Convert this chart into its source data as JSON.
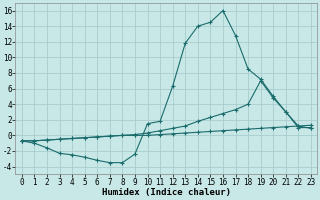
{
  "xlabel": "Humidex (Indice chaleur)",
  "background_color": "#c8e8e8",
  "grid_color": "#a8cccc",
  "line_color": "#1a6b6b",
  "xlim_min": -0.5,
  "xlim_max": 23.5,
  "ylim_min": -5,
  "ylim_max": 17,
  "xticks": [
    0,
    1,
    2,
    3,
    4,
    5,
    6,
    7,
    8,
    9,
    10,
    11,
    12,
    13,
    14,
    15,
    16,
    17,
    18,
    19,
    20,
    21,
    22,
    23
  ],
  "yticks": [
    -4,
    -2,
    0,
    2,
    4,
    6,
    8,
    10,
    12,
    14,
    16
  ],
  "line1_x": [
    0,
    1,
    2,
    3,
    4,
    5,
    6,
    7,
    8,
    9,
    10,
    11,
    12,
    13,
    14,
    15,
    16,
    17,
    18,
    19,
    20,
    21,
    22,
    23
  ],
  "line1_y": [
    -0.7,
    -1.0,
    -1.6,
    -2.3,
    -2.5,
    -2.8,
    -3.2,
    -3.5,
    -3.5,
    -2.4,
    1.5,
    1.8,
    6.3,
    11.8,
    14.0,
    14.5,
    16.0,
    12.8,
    8.5,
    7.2,
    5.0,
    3.0,
    1.2,
    0.9
  ],
  "line2_x": [
    0,
    1,
    2,
    3,
    4,
    5,
    6,
    7,
    8,
    9,
    10,
    11,
    12,
    13,
    14,
    15,
    16,
    17,
    18,
    19,
    20,
    21,
    22,
    23
  ],
  "line2_y": [
    -0.7,
    -0.7,
    -0.6,
    -0.5,
    -0.4,
    -0.3,
    -0.2,
    -0.1,
    0.0,
    0.1,
    0.3,
    0.6,
    0.9,
    1.2,
    1.8,
    2.3,
    2.8,
    3.3,
    4.0,
    7.0,
    4.8,
    3.0,
    1.0,
    1.0
  ],
  "line3_x": [
    0,
    1,
    2,
    3,
    4,
    5,
    6,
    7,
    8,
    9,
    10,
    11,
    12,
    13,
    14,
    15,
    16,
    17,
    18,
    19,
    20,
    21,
    22,
    23
  ],
  "line3_y": [
    -0.7,
    -0.7,
    -0.6,
    -0.5,
    -0.4,
    -0.3,
    -0.2,
    -0.1,
    0.0,
    0.0,
    0.0,
    0.1,
    0.2,
    0.3,
    0.4,
    0.5,
    0.6,
    0.7,
    0.8,
    0.9,
    1.0,
    1.1,
    1.2,
    1.3
  ]
}
